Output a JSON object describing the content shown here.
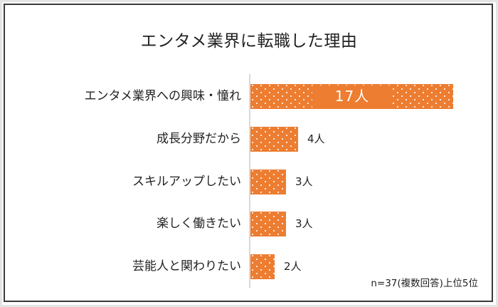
{
  "title": "エンタメ業界に転職した理由",
  "note": "n=37(複数回答)上位5位",
  "colors": {
    "bar": "#ED7D31",
    "axis": "#d9d9d9",
    "text": "#222222",
    "border": "#3a3a3a"
  },
  "chart_data": {
    "type": "bar",
    "orientation": "horizontal",
    "title": "エンタメ業界に転職した理由",
    "categories": [
      "エンタメ業界への興味・憧れ",
      "成長分野だから",
      "スキルアップしたい",
      "楽しく働きたい",
      "芸能人と関わりたい"
    ],
    "values": [
      17,
      4,
      3,
      3,
      2
    ],
    "value_labels": [
      "17人",
      "4人",
      "3人",
      "3人",
      "2人"
    ],
    "unit": "人",
    "xlabel": "",
    "ylabel": "",
    "xlim": [
      0,
      17
    ],
    "grid": false,
    "legend": null,
    "annotation": "n=37(複数回答)上位5位",
    "bar_pattern": "dotted"
  }
}
